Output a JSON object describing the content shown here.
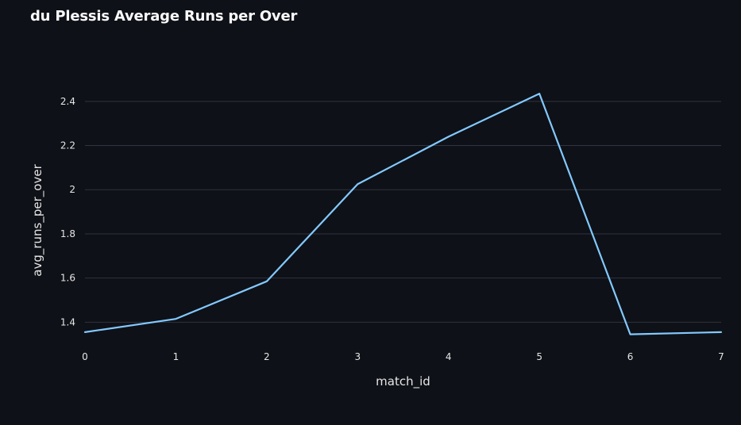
{
  "chart_data": {
    "type": "line",
    "title": "du Plessis Average Runs per Over",
    "xlabel": "match_id",
    "ylabel": "avg_runs_per_over",
    "x": [
      0,
      1,
      2,
      3,
      4,
      5,
      6,
      7
    ],
    "x_ticks": [
      "0",
      "1",
      "2",
      "3",
      "4",
      "5",
      "6",
      "7"
    ],
    "xlim": [
      0,
      7
    ],
    "series": [
      {
        "values": [
          1.355,
          1.415,
          1.585,
          2.025,
          2.24,
          2.435,
          1.345,
          1.355
        ]
      }
    ],
    "y_ticks": [
      "1.4",
      "1.6",
      "1.8",
      "2",
      "2.2",
      "2.4"
    ],
    "y_tick_values": [
      1.4,
      1.6,
      1.8,
      2.0,
      2.2,
      2.4
    ],
    "ylim": [
      1.2935,
      2.5
    ],
    "grid": "horizontal",
    "line_color": "#83c9ff",
    "background_color": "#0e1117",
    "grid_color": "#31333f",
    "text_color": "#e6e6e6"
  }
}
